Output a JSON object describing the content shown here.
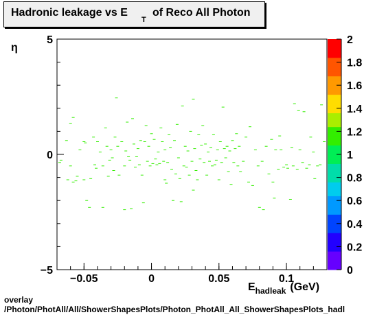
{
  "title": {
    "main": "Hadronic leakage vs E",
    "subscript": "T",
    "rest": "of Reco All Photon"
  },
  "footer": {
    "line1": "overlay",
    "line2": "/Photon/PhotAll/All/ShowerShapesPlots/Photon_PhotAll_All_ShowerShapesPlots_hadl"
  },
  "chart_data": {
    "type": "heatmap",
    "title": "Hadronic leakage vs E_T of Reco All Photon",
    "xlabel_main": "E",
    "xlabel_sub": "hadleak",
    "xlabel_unit": "(GeV)",
    "ylabel": "η",
    "xlim": [
      -0.07,
      0.13
    ],
    "ylim": [
      -5,
      5
    ],
    "x_ticks": [
      -0.05,
      0,
      0.05,
      0.1
    ],
    "x_tick_labels": [
      "−0.05",
      "0",
      "0.05",
      "0.1"
    ],
    "y_ticks": [
      -5,
      0,
      5
    ],
    "y_tick_labels": [
      "−5",
      "0",
      "5"
    ],
    "z_range": [
      0,
      2
    ],
    "z_ticks": [
      0,
      0.2,
      0.4,
      0.6,
      0.8,
      1,
      1.2,
      1.4,
      1.6,
      1.8,
      2
    ],
    "z_tick_labels": [
      "0",
      "0.2",
      "0.4",
      "0.6",
      "0.8",
      "1",
      "1.2",
      "1.4",
      "1.6",
      "1.8",
      "2"
    ],
    "colormap": [
      "#6600ff",
      "#2200ff",
      "#0044ff",
      "#0099ff",
      "#00ccee",
      "#00ddaa",
      "#00ee55",
      "#33ee00",
      "#aaee00",
      "#ffdd00",
      "#ff9900",
      "#ff5500",
      "#ff0000"
    ],
    "bin_value": 1,
    "bin_color": "#33ee00",
    "points": [
      [
        -0.068,
        -0.35
      ],
      [
        -0.067,
        -0.25
      ],
      [
        -0.063,
        0.6
      ],
      [
        -0.062,
        -1.1
      ],
      [
        -0.06,
        1.35
      ],
      [
        -0.06,
        -0.5
      ],
      [
        -0.058,
        -1.2
      ],
      [
        -0.058,
        1.6
      ],
      [
        -0.056,
        -1.15
      ],
      [
        -0.055,
        -0.95
      ],
      [
        -0.053,
        0.2
      ],
      [
        -0.05,
        -1.1
      ],
      [
        -0.05,
        0.55
      ],
      [
        -0.049,
        0.5
      ],
      [
        -0.048,
        -2.0
      ],
      [
        -0.046,
        -2.3
      ],
      [
        -0.045,
        -1.05
      ],
      [
        -0.043,
        0.75
      ],
      [
        -0.042,
        -0.45
      ],
      [
        -0.041,
        -0.6
      ],
      [
        -0.04,
        0.55
      ],
      [
        -0.038,
        0.1
      ],
      [
        -0.036,
        -2.3
      ],
      [
        -0.036,
        -0.5
      ],
      [
        -0.034,
        1.15
      ],
      [
        -0.033,
        0.35
      ],
      [
        -0.032,
        -0.95
      ],
      [
        -0.031,
        -0.25
      ],
      [
        -0.03,
        0.2
      ],
      [
        -0.029,
        -0.15
      ],
      [
        -0.028,
        -0.7
      ],
      [
        -0.027,
        0.75
      ],
      [
        -0.026,
        2.45
      ],
      [
        -0.025,
        0.35
      ],
      [
        -0.024,
        -0.9
      ],
      [
        -0.022,
        0.55
      ],
      [
        -0.02,
        -0.5
      ],
      [
        -0.02,
        -2.4
      ],
      [
        -0.019,
        0.15
      ],
      [
        -0.018,
        1.4
      ],
      [
        -0.017,
        -0.1
      ],
      [
        -0.016,
        -0.25
      ],
      [
        -0.015,
        -2.35
      ],
      [
        -0.014,
        1.55
      ],
      [
        -0.013,
        0.45
      ],
      [
        -0.012,
        -0.55
      ],
      [
        -0.011,
        -0.1
      ],
      [
        -0.01,
        0.25
      ],
      [
        -0.009,
        -0.45
      ],
      [
        -0.008,
        0.6
      ],
      [
        -0.007,
        -0.9
      ],
      [
        -0.006,
        -2.1
      ],
      [
        -0.005,
        0.55
      ],
      [
        -0.004,
        1.25
      ],
      [
        -0.003,
        -0.3
      ],
      [
        -0.002,
        0.35
      ],
      [
        -0.001,
        -0.5
      ],
      [
        0.0,
        0.9
      ],
      [
        0.001,
        -0.4
      ],
      [
        0.002,
        0.65
      ],
      [
        0.003,
        -0.2
      ],
      [
        0.004,
        -0.45
      ],
      [
        0.005,
        0.1
      ],
      [
        0.006,
        -0.4
      ],
      [
        0.007,
        1.15
      ],
      [
        0.008,
        0.55
      ],
      [
        0.009,
        -0.3
      ],
      [
        0.01,
        -1.1
      ],
      [
        0.01,
        0.2
      ],
      [
        0.011,
        -1.25
      ],
      [
        0.012,
        -0.35
      ],
      [
        0.013,
        0.85
      ],
      [
        0.014,
        0.3
      ],
      [
        0.015,
        -0.65
      ],
      [
        0.016,
        -2.0
      ],
      [
        0.017,
        0.6
      ],
      [
        0.018,
        -0.85
      ],
      [
        0.019,
        1.3
      ],
      [
        0.02,
        -0.15
      ],
      [
        0.021,
        -1.05
      ],
      [
        0.022,
        -2.05
      ],
      [
        0.023,
        2.1
      ],
      [
        0.024,
        -0.5
      ],
      [
        0.025,
        0.35
      ],
      [
        0.026,
        -0.55
      ],
      [
        0.027,
        0.15
      ],
      [
        0.028,
        -0.9
      ],
      [
        0.029,
        1.0
      ],
      [
        0.03,
        -0.3
      ],
      [
        0.031,
        -1.55
      ],
      [
        0.031,
        2.4
      ],
      [
        0.032,
        0.25
      ],
      [
        0.033,
        -0.7
      ],
      [
        0.034,
        -1.1
      ],
      [
        0.035,
        0.85
      ],
      [
        0.036,
        -0.2
      ],
      [
        0.037,
        0.4
      ],
      [
        0.038,
        1.25
      ],
      [
        0.039,
        -0.35
      ],
      [
        0.04,
        0.45
      ],
      [
        0.041,
        -0.9
      ],
      [
        0.042,
        0.1
      ],
      [
        0.043,
        -0.3
      ],
      [
        0.044,
        0.3
      ],
      [
        0.045,
        -0.5
      ],
      [
        0.046,
        0.85
      ],
      [
        0.047,
        -0.45
      ],
      [
        0.048,
        -0.25
      ],
      [
        0.049,
        0.2
      ],
      [
        0.05,
        -1.1
      ],
      [
        0.051,
        0.55
      ],
      [
        0.052,
        -0.35
      ],
      [
        0.053,
        2.05
      ],
      [
        0.054,
        0.25
      ],
      [
        0.055,
        -0.15
      ],
      [
        0.056,
        0.35
      ],
      [
        0.057,
        -0.75
      ],
      [
        0.058,
        0.15
      ],
      [
        0.059,
        -1.3
      ],
      [
        0.06,
        0.6
      ],
      [
        0.061,
        -0.35
      ],
      [
        0.062,
        0.25
      ],
      [
        0.063,
        0.9
      ],
      [
        0.064,
        -0.5
      ],
      [
        0.065,
        0.35
      ],
      [
        0.066,
        -0.75
      ],
      [
        0.068,
        -0.3
      ],
      [
        0.07,
        0.75
      ],
      [
        0.072,
        -1.2
      ],
      [
        0.073,
        1.2
      ],
      [
        0.075,
        -1.35
      ],
      [
        0.077,
        0.2
      ],
      [
        0.079,
        -0.5
      ],
      [
        0.08,
        -2.3
      ],
      [
        0.082,
        -0.3
      ],
      [
        0.083,
        -2.4
      ],
      [
        0.085,
        0.35
      ],
      [
        0.087,
        -0.85
      ],
      [
        0.089,
        0.65
      ],
      [
        0.09,
        -1.2
      ],
      [
        0.091,
        -1.9
      ],
      [
        0.092,
        0.2
      ],
      [
        0.094,
        -0.65
      ],
      [
        0.095,
        0.8
      ],
      [
        0.096,
        0.2
      ],
      [
        0.098,
        -0.55
      ],
      [
        0.1,
        -0.45
      ],
      [
        0.101,
        -0.6
      ],
      [
        0.103,
        -1.95
      ],
      [
        0.104,
        0.3
      ],
      [
        0.105,
        -0.5
      ],
      [
        0.106,
        2.2
      ],
      [
        0.108,
        -0.65
      ],
      [
        0.109,
        1.9
      ],
      [
        0.11,
        0.2
      ],
      [
        0.112,
        -0.35
      ],
      [
        0.113,
        1.85
      ],
      [
        0.115,
        -0.6
      ],
      [
        0.117,
        -0.45
      ],
      [
        0.118,
        0.75
      ],
      [
        0.12,
        0.1
      ],
      [
        0.121,
        -1.05
      ],
      [
        0.123,
        -0.5
      ],
      [
        0.125,
        -0.45
      ],
      [
        0.126,
        2.15
      ],
      [
        0.128,
        0.55
      ]
    ]
  }
}
